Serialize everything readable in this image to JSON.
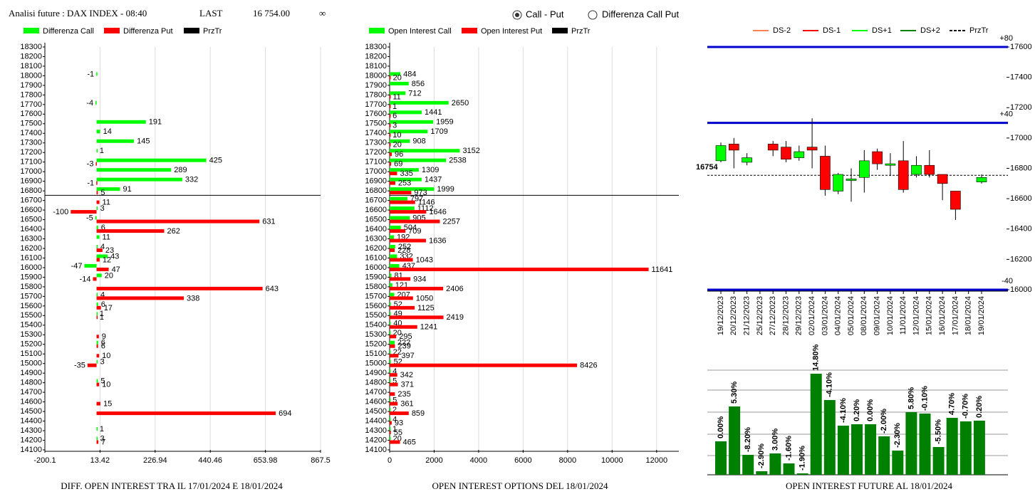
{
  "header": {
    "title": "Analisi future : DAX INDEX - 08:40",
    "last_label": "LAST",
    "last": "16 754.00",
    "infinity": "∞",
    "options": [
      "Call - Put",
      "Differenza Call Put"
    ]
  },
  "chart_data": [
    {
      "type": "barh",
      "title": "DIFF. OPEN INTEREST TRA IL 17/01/2024 E 18/01/2024",
      "categories": [
        18300,
        18200,
        18100,
        18000,
        17900,
        17800,
        17700,
        17600,
        17500,
        17400,
        17300,
        17200,
        17100,
        17000,
        16900,
        16800,
        16700,
        16600,
        16500,
        16400,
        16300,
        16200,
        16100,
        16000,
        15900,
        15800,
        15700,
        15600,
        15500,
        15400,
        15300,
        15200,
        15100,
        15000,
        14900,
        14800,
        14700,
        14600,
        14500,
        14400,
        14300,
        14200,
        14100
      ],
      "series": [
        {
          "name": "Differenza Call",
          "color": "#00ff00",
          "values": [
            null,
            null,
            null,
            -1,
            null,
            null,
            -4,
            null,
            191,
            14,
            145,
            1,
            425,
            289,
            332,
            91,
            null,
            3,
            -5,
            6,
            11,
            4,
            43,
            -47,
            20,
            null,
            4,
            6,
            1,
            null,
            null,
            6,
            null,
            3,
            null,
            5,
            null,
            null,
            null,
            null,
            1,
            3,
            null
          ]
        },
        {
          "name": "Differenza Put",
          "color": "#ff0000",
          "values": [
            null,
            null,
            null,
            null,
            null,
            null,
            null,
            null,
            null,
            null,
            null,
            null,
            -3,
            null,
            -1,
            5,
            11,
            -100,
            631,
            262,
            null,
            23,
            12,
            47,
            -14,
            643,
            338,
            17,
            1,
            null,
            9,
            6,
            10,
            -35,
            null,
            10,
            null,
            15,
            694,
            null,
            null,
            7,
            null
          ]
        }
      ],
      "price_line": {
        "name": "PrzTr",
        "color": "#000000",
        "value": 16754
      },
      "xlim": [
        -200.1,
        867.5
      ],
      "xticks": [
        -200.1,
        13.42,
        226.94,
        440.46,
        653.98,
        867.5
      ],
      "grid": true
    },
    {
      "type": "barh",
      "title": "OPEN INTEREST OPTIONS DEL 18/01/2024",
      "categories": [
        18300,
        18200,
        18100,
        18000,
        17900,
        17800,
        17700,
        17600,
        17500,
        17400,
        17300,
        17200,
        17100,
        17000,
        16900,
        16800,
        16700,
        16600,
        16500,
        16400,
        16300,
        16200,
        16100,
        16000,
        15900,
        15800,
        15700,
        15600,
        15500,
        15400,
        15300,
        15200,
        15100,
        15000,
        14900,
        14800,
        14700,
        14600,
        14500,
        14400,
        14300,
        14200,
        14100
      ],
      "series": [
        {
          "name": "Open Interest Call",
          "color": "#00ff00",
          "values": [
            null,
            null,
            null,
            484,
            856,
            712,
            2650,
            1441,
            1959,
            1709,
            908,
            3152,
            2538,
            1309,
            1437,
            1999,
            797,
            1112,
            905,
            504,
            192,
            252,
            332,
            437,
            81,
            121,
            207,
            52,
            49,
            40,
            20,
            222,
            22,
            52,
            4,
            5,
            null,
            5,
            2,
            4,
            1,
            20,
            null
          ]
        },
        {
          "name": "Open Interest Put",
          "color": "#ff0000",
          "values": [
            null,
            null,
            null,
            20,
            null,
            11,
            1,
            6,
            3,
            10,
            20,
            96,
            69,
            335,
            253,
            973,
            1146,
            1646,
            2257,
            709,
            1636,
            228,
            1043,
            11641,
            934,
            2406,
            1050,
            1125,
            2419,
            1241,
            295,
            239,
            397,
            8426,
            342,
            371,
            235,
            361,
            859,
            93,
            55,
            465,
            null
          ]
        }
      ],
      "price_line": {
        "name": "PrzTr",
        "color": "#000000",
        "value": 16754
      },
      "xlim": [
        0,
        13000
      ],
      "xticks": [
        0,
        2000,
        4000,
        6000,
        8000,
        10000,
        12000
      ],
      "grid": true
    },
    {
      "type": "candlestick",
      "categories": [
        "19/12/2023",
        "20/12/2023",
        "21/12/2023",
        "25/12/2023",
        "27/12/2023",
        "28/12/2023",
        "29/12/2023",
        "02/01/2024",
        "03/01/2024",
        "04/01/2024",
        "05/01/2024",
        "08/01/2024",
        "09/01/2024",
        "10/01/2024",
        "11/01/2024",
        "12/01/2024",
        "15/01/2024",
        "16/01/2024",
        "17/01/2024",
        "18/01/2024",
        "19/01/2024"
      ],
      "open": [
        16850,
        16960,
        16840,
        null,
        16960,
        16940,
        16870,
        16940,
        16880,
        16650,
        16720,
        16740,
        16910,
        16820,
        16850,
        16760,
        16820,
        16760,
        16650,
        null,
        16710
      ],
      "high": [
        16970,
        17000,
        16900,
        null,
        16980,
        16980,
        16950,
        17130,
        16950,
        16770,
        16800,
        16920,
        16930,
        16900,
        16980,
        16880,
        16920,
        16760,
        16650,
        null,
        16760
      ],
      "low": [
        16840,
        16800,
        16820,
        null,
        16880,
        16840,
        16850,
        16800,
        16620,
        16630,
        16580,
        16640,
        16790,
        16750,
        16640,
        16740,
        16740,
        16590,
        16460,
        null,
        16700
      ],
      "close": [
        16950,
        16920,
        16870,
        null,
        16920,
        16860,
        16910,
        16920,
        16660,
        16760,
        16730,
        16850,
        16830,
        16830,
        16660,
        16820,
        16760,
        16700,
        16530,
        null,
        16740
      ],
      "up_color": "#00ff00",
      "down_color": "#ff0000",
      "legend": [
        {
          "name": "DS-2",
          "color": "#ff7f50"
        },
        {
          "name": "DS-1",
          "color": "#ff0000"
        },
        {
          "name": "DS+1",
          "color": "#00ff00"
        },
        {
          "name": "DS+2",
          "color": "#008000"
        },
        {
          "name": "PrzTr",
          "color": "#000000"
        }
      ],
      "levels": [
        {
          "value": 17600,
          "label": "+80"
        },
        {
          "value": 17100,
          "label": "+40"
        },
        {
          "value": 16000,
          "label": "-40"
        }
      ],
      "price": 16754,
      "ylim": [
        16000,
        17600
      ],
      "yticks": [
        16000,
        16200,
        16400,
        16600,
        16800,
        17000,
        17200,
        17400,
        17600
      ]
    },
    {
      "type": "bar",
      "title": "OPEN INTEREST FUTURE AL 18/01/2024",
      "color": "#008000",
      "values": [
        47,
        96,
        28,
        5,
        30,
        16,
        2,
        142,
        105,
        69,
        71,
        71,
        54,
        34,
        88,
        86,
        39,
        80,
        75,
        76
      ],
      "annotations": [
        "0.00%",
        "5.30%",
        "-8.20%",
        "-2.90%",
        "3.00%",
        "-1.60%",
        "-1.90%",
        "14.80%",
        "-4.10%",
        "-4.10%",
        "0.20%",
        "0.00%",
        "-2.00%",
        "-2.30%",
        "5.80%",
        "-0.10%",
        "-5.50%",
        "4.70%",
        "-0.70%",
        "0.20%"
      ],
      "ylim": [
        0,
        150
      ]
    }
  ]
}
